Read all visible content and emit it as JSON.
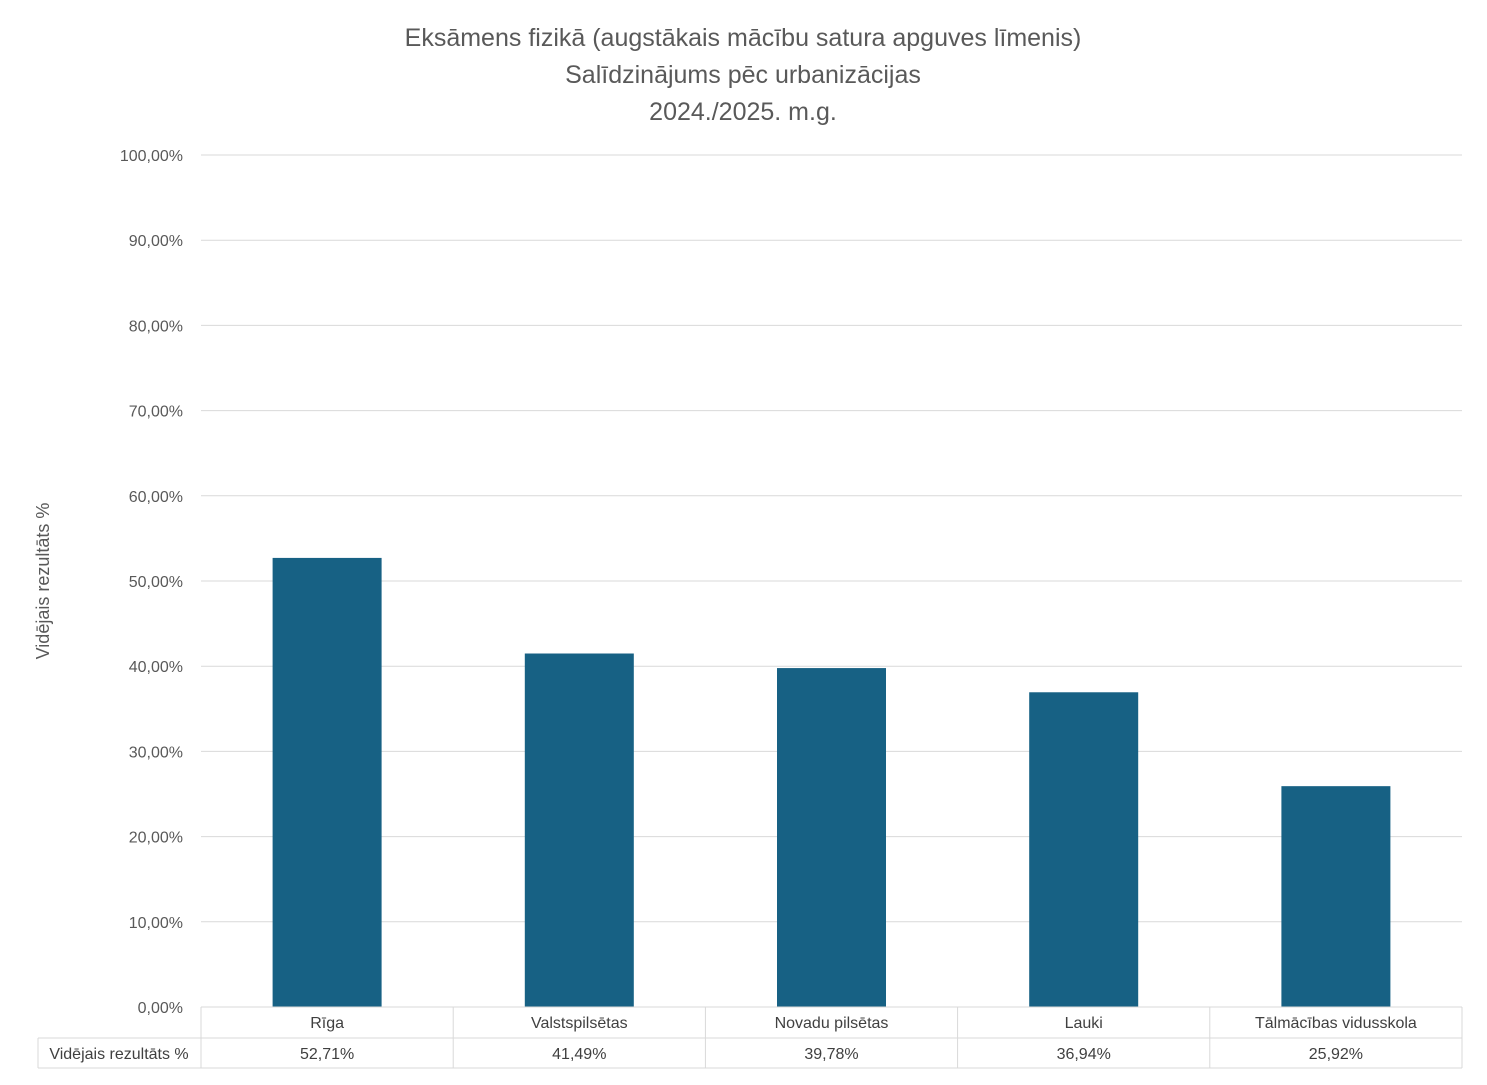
{
  "chart_data": {
    "type": "bar",
    "title_lines": [
      "Eksāmens fizikā (augstākais mācību satura apguves līmenis)",
      "Salīdzinājums pēc urbanizācijas",
      "2024./2025. m.g."
    ],
    "xlabel": "",
    "ylabel": "Vidējais rezultāts %",
    "categories": [
      "Rīga",
      "Valstspilsētas",
      "Novadu pilsētas",
      "Lauki",
      "Tālmācības vidusskola"
    ],
    "series": [
      {
        "name": "Vidējais rezultāts %",
        "values": [
          52.71,
          41.49,
          39.78,
          36.94,
          25.92
        ],
        "value_labels": [
          "52,71%",
          "41,49%",
          "39,78%",
          "36,94%",
          "25,92%"
        ],
        "color": "#176184"
      }
    ],
    "ylim": [
      0,
      100
    ],
    "yticks": [
      0,
      10,
      20,
      30,
      40,
      50,
      60,
      70,
      80,
      90,
      100
    ],
    "ytick_labels": [
      "0,00%",
      "10,00%",
      "20,00%",
      "30,00%",
      "40,00%",
      "50,00%",
      "60,00%",
      "70,00%",
      "80,00%",
      "90,00%",
      "100,00%"
    ],
    "grid": true,
    "data_table": true
  }
}
